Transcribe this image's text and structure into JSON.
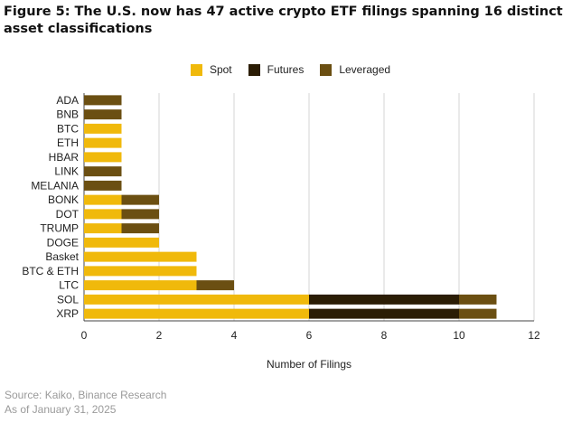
{
  "title": "Figure 5: The U.S. now has 47 active crypto ETF filings spanning 16 distinct asset classifications",
  "source_line": "Source: Kaiko, Binance Research",
  "date_line": "As of January 31, 2025",
  "colors": {
    "spot": "#F0B90B",
    "futures": "#2B1D05",
    "leveraged": "#6B4F12",
    "grid": "#d6d6d6",
    "axis_text": "#222222"
  },
  "chart_data": {
    "type": "bar",
    "orientation": "horizontal",
    "stacked": true,
    "title": "Figure 5: The U.S. now has 47 active crypto ETF filings spanning 16 distinct asset classifications",
    "xlabel": "Number of Filings",
    "ylabel": "",
    "xlim": [
      0,
      12
    ],
    "xticks": [
      0,
      2,
      4,
      6,
      8,
      10,
      12
    ],
    "grid": true,
    "legend_position": "top-center",
    "categories": [
      "ADA",
      "BNB",
      "BTC",
      "ETH",
      "HBAR",
      "LINK",
      "MELANIA",
      "BONK",
      "DOT",
      "TRUMP",
      "DOGE",
      "Basket",
      "BTC & ETH",
      "LTC",
      "SOL",
      "XRP"
    ],
    "series": [
      {
        "name": "Spot",
        "color": "#F0B90B",
        "values": [
          0,
          0,
          1,
          1,
          1,
          0,
          0,
          1,
          1,
          1,
          2,
          3,
          3,
          3,
          6,
          6
        ]
      },
      {
        "name": "Futures",
        "color": "#2B1D05",
        "values": [
          0,
          0,
          0,
          0,
          0,
          0,
          0,
          0,
          0,
          0,
          0,
          0,
          0,
          0,
          4,
          4
        ]
      },
      {
        "name": "Leveraged",
        "color": "#6B4F12",
        "values": [
          1,
          1,
          0,
          0,
          0,
          1,
          1,
          1,
          1,
          1,
          0,
          0,
          0,
          1,
          1,
          1
        ]
      }
    ]
  }
}
